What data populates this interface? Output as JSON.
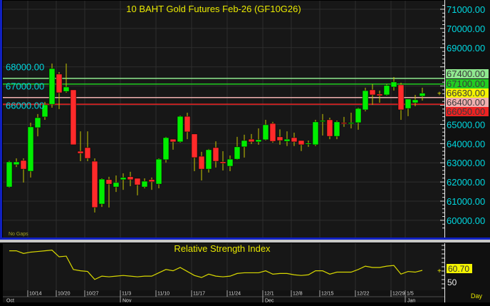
{
  "chart_data": [
    {
      "type": "candlestick",
      "title": "10 BAHT Gold Futures Feb-26 (GF10G26)",
      "note": "No Gaps",
      "ylim": [
        59500,
        71400
      ],
      "y_ticks": [
        60000,
        61000,
        62000,
        63000,
        64000,
        65000,
        66000,
        67000,
        68000,
        69000,
        70000,
        71000
      ],
      "grid": true,
      "colors": {
        "up": "#00ee00",
        "down": "#ff2a2a",
        "wick": "#c8c800",
        "axis_text": "#00d8e0"
      },
      "levels": [
        {
          "value": 67400,
          "label": "67400.00",
          "color": "#8fe88f",
          "line": true
        },
        {
          "value": 67100,
          "label": "67100.00",
          "color": "#22cc22",
          "line": true
        },
        {
          "value": 66630,
          "label": "66630.00",
          "color": "#f4f400",
          "line": false
        },
        {
          "value": 66400,
          "label": "66400.00",
          "color": "#f0b0b0",
          "line": true
        },
        {
          "value": 66050,
          "label": "66050.00",
          "color": "#ee2222",
          "line": true
        }
      ],
      "ohlc": [
        [
          61740,
          63100,
          61700,
          63045
        ],
        [
          62900,
          63230,
          62780,
          63045
        ],
        [
          63120,
          63230,
          61970,
          62670
        ],
        [
          62560,
          65090,
          62230,
          64870
        ],
        [
          64830,
          65540,
          64380,
          65350
        ],
        [
          65390,
          66170,
          65240,
          66020
        ],
        [
          66050,
          68170,
          65870,
          67910
        ],
        [
          67620,
          67730,
          65800,
          66650
        ],
        [
          66720,
          68170,
          66650,
          66950
        ],
        [
          66800,
          66800,
          63940,
          63940
        ],
        [
          63600,
          64640,
          63080,
          63490
        ],
        [
          63790,
          64640,
          63080,
          63230
        ],
        [
          63080,
          63230,
          60410,
          60670
        ],
        [
          60850,
          62190,
          60700,
          62150
        ],
        [
          62120,
          62270,
          60670,
          61890
        ],
        [
          61740,
          62340,
          61480,
          61970
        ],
        [
          62120,
          62450,
          61590,
          62230
        ],
        [
          62270,
          62530,
          61780,
          62120
        ],
        [
          62190,
          62190,
          61300,
          61850
        ],
        [
          61740,
          62190,
          61670,
          62040
        ],
        [
          62120,
          62230,
          61590,
          62010
        ],
        [
          61890,
          63230,
          61670,
          63190
        ],
        [
          63160,
          64350,
          63010,
          64310
        ],
        [
          64230,
          64230,
          63680,
          64090
        ],
        [
          64090,
          65460,
          64050,
          65420
        ],
        [
          65420,
          65610,
          64230,
          64610
        ],
        [
          64500,
          64500,
          62560,
          63270
        ],
        [
          63340,
          63570,
          62080,
          62670
        ],
        [
          62670,
          63720,
          62490,
          63680
        ],
        [
          63790,
          64120,
          62750,
          63080
        ],
        [
          63050,
          63600,
          62600,
          62970
        ],
        [
          62820,
          63380,
          62560,
          63190
        ],
        [
          63190,
          64350,
          63160,
          63830
        ],
        [
          63830,
          64460,
          63270,
          64160
        ],
        [
          64230,
          64500,
          63980,
          64090
        ],
        [
          64090,
          64790,
          63940,
          64200
        ],
        [
          64200,
          65240,
          64160,
          64980
        ],
        [
          65050,
          65130,
          64050,
          64120
        ],
        [
          64350,
          64740,
          63940,
          64160
        ],
        [
          64120,
          64640,
          63870,
          64230
        ],
        [
          64310,
          64570,
          63870,
          64090
        ],
        [
          64160,
          64160,
          63610,
          63940
        ],
        [
          63980,
          64160,
          63830,
          64020
        ],
        [
          63940,
          65240,
          63870,
          65130
        ],
        [
          65170,
          65540,
          64420,
          65200
        ],
        [
          65240,
          65350,
          64230,
          64380
        ],
        [
          64380,
          65200,
          64230,
          65130
        ],
        [
          65090,
          65390,
          64870,
          65050
        ],
        [
          65050,
          65610,
          64790,
          65090
        ],
        [
          65090,
          65870,
          64720,
          65830
        ],
        [
          65760,
          66910,
          65680,
          66760
        ],
        [
          66800,
          67100,
          66020,
          66540
        ],
        [
          66580,
          66760,
          66130,
          66500
        ],
        [
          66540,
          67100,
          66500,
          67030
        ],
        [
          66950,
          67470,
          66760,
          67210
        ],
        [
          67060,
          67170,
          65240,
          65760
        ],
        [
          65830,
          66320,
          65430,
          66320
        ],
        [
          66130,
          66540,
          65950,
          66280
        ],
        [
          66470,
          66910,
          66240,
          66630
        ]
      ],
      "x_tick_labels": [
        {
          "label": "10/14",
          "bar": 3
        },
        {
          "label": "10/20",
          "bar": 7
        },
        {
          "label": "10/27",
          "bar": 11
        },
        {
          "label": "11/3",
          "bar": 16
        },
        {
          "label": "11/10",
          "bar": 21
        },
        {
          "label": "11/17",
          "bar": 26
        },
        {
          "label": "11/24",
          "bar": 31
        },
        {
          "label": "12/1",
          "bar": 36
        },
        {
          "label": "12/8",
          "bar": 40
        },
        {
          "label": "12/15",
          "bar": 44
        },
        {
          "label": "12/22",
          "bar": 49
        },
        {
          "label": "12/29",
          "bar": 54
        },
        {
          "label": "1/5",
          "bar": 56
        }
      ],
      "month_labels": [
        {
          "label": "Oct",
          "bar": 0
        },
        {
          "label": "Nov",
          "bar": 16
        },
        {
          "label": "Dec",
          "bar": 36
        },
        {
          "label": "Jan",
          "bar": 56
        }
      ],
      "x_unit_label": "Day"
    },
    {
      "type": "line",
      "title": "Relative Strength Index",
      "color": "#d8d800",
      "last_value_label": "60.70",
      "reference_label": "50",
      "values": [
        90,
        90,
        86,
        88,
        89,
        90,
        91,
        81,
        82,
        62,
        60,
        59,
        47,
        52,
        51,
        52,
        53,
        52,
        51,
        52,
        52,
        57,
        62,
        60,
        65,
        59,
        53,
        50,
        55,
        52,
        51,
        52,
        56,
        57,
        57,
        57,
        60,
        55,
        56,
        56,
        54,
        53,
        54,
        60,
        60,
        55,
        58,
        58,
        58,
        62,
        67,
        65,
        65,
        67,
        68,
        55,
        59,
        58,
        60.7
      ]
    }
  ]
}
